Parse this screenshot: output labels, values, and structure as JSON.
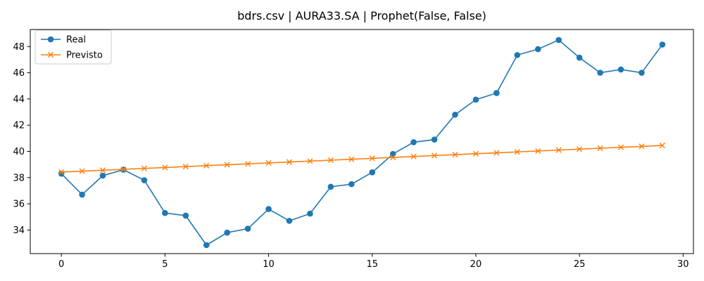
{
  "chart_data": {
    "type": "line",
    "title": "bdrs.csv | AURA33.SA | Prophet(False, False)",
    "xlabel": "",
    "ylabel": "",
    "x": [
      0,
      1,
      2,
      3,
      4,
      5,
      6,
      7,
      8,
      9,
      10,
      11,
      12,
      13,
      14,
      15,
      16,
      17,
      18,
      19,
      20,
      21,
      22,
      23,
      24,
      25,
      26,
      27,
      28,
      29
    ],
    "xlim": [
      -1.5,
      30.5
    ],
    "ylim": [
      32.2,
      49.3
    ],
    "x_ticks": [
      0,
      5,
      10,
      15,
      20,
      25,
      30
    ],
    "y_ticks": [
      34,
      36,
      38,
      40,
      42,
      44,
      46,
      48
    ],
    "grid": false,
    "legend_position": "top-left",
    "series": [
      {
        "name": "Real",
        "color": "#1f77b4",
        "marker": "circle",
        "values": [
          38.3,
          36.7,
          38.15,
          38.6,
          37.8,
          35.3,
          35.1,
          32.85,
          33.8,
          34.1,
          35.6,
          34.7,
          35.25,
          37.3,
          37.5,
          38.4,
          39.8,
          40.7,
          40.9,
          42.8,
          43.95,
          44.45,
          47.35,
          47.8,
          48.5,
          47.15,
          46.0,
          46.25,
          46.0,
          48.15
        ]
      },
      {
        "name": "Previsto",
        "color": "#ff7f0e",
        "marker": "x",
        "values": [
          38.42,
          38.49,
          38.56,
          38.63,
          38.7,
          38.77,
          38.84,
          38.91,
          38.98,
          39.05,
          39.12,
          39.19,
          39.26,
          39.33,
          39.4,
          39.47,
          39.54,
          39.61,
          39.68,
          39.75,
          39.82,
          39.89,
          39.96,
          40.03,
          40.1,
          40.17,
          40.24,
          40.31,
          40.38,
          40.45
        ]
      }
    ]
  }
}
